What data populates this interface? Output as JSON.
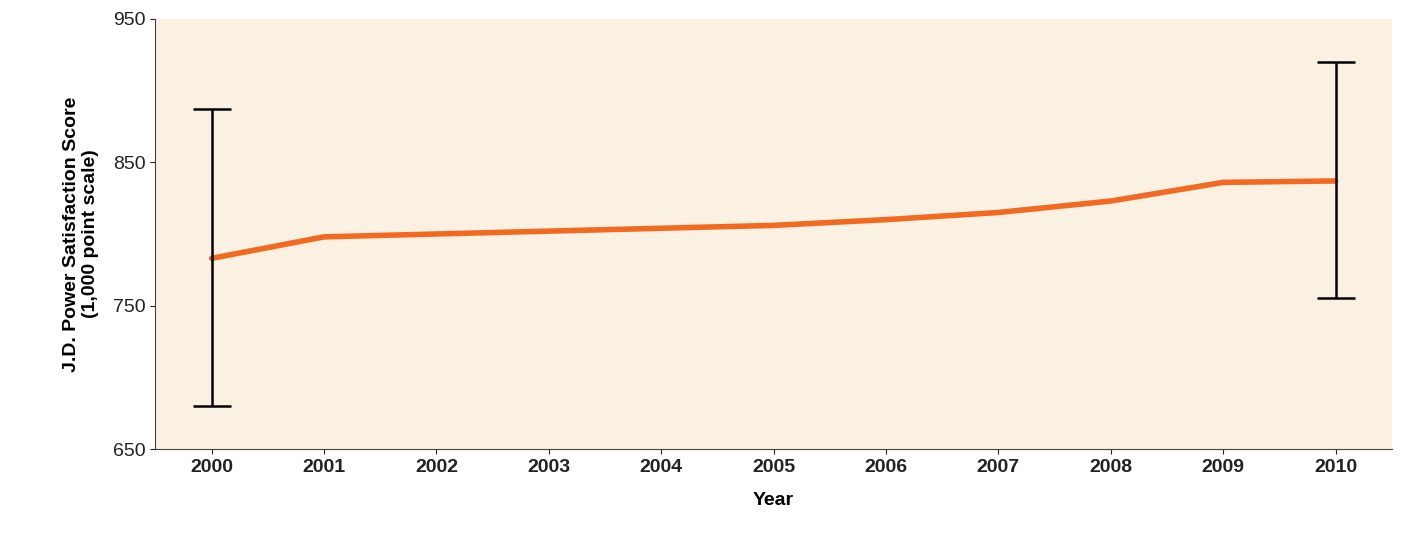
{
  "chart_data": {
    "type": "line",
    "x_label": "Year",
    "y_label": "J.D. Power Satisfaction Score\n(1,000 point scale)",
    "x": [
      2000,
      2001,
      2002,
      2003,
      2004,
      2005,
      2006,
      2007,
      2008,
      2009,
      2010
    ],
    "values": [
      783,
      798,
      800,
      802,
      804,
      806,
      810,
      815,
      823,
      836,
      837
    ],
    "error_low": [
      680,
      null,
      null,
      null,
      null,
      null,
      null,
      null,
      null,
      null,
      755
    ],
    "error_high": [
      887,
      null,
      null,
      null,
      null,
      null,
      null,
      null,
      null,
      null,
      920
    ],
    "color": "#f26a21",
    "xlim": [
      1999.5,
      2010.5
    ],
    "xticks": [
      2000,
      2001,
      2002,
      2003,
      2004,
      2005,
      2006,
      2007,
      2008,
      2009,
      2010
    ],
    "ylim": [
      650,
      950
    ],
    "yticks": [
      650,
      750,
      850,
      950
    ],
    "grid": false
  }
}
